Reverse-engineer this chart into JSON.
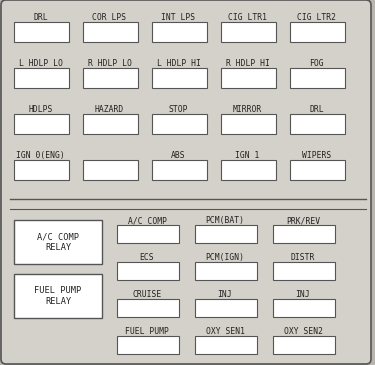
{
  "bg_outer": "#b8b5ae",
  "bg_inner": "#d4d1ca",
  "box_fill": "#f5f3ef",
  "border_color": "#555555",
  "text_color": "#222222",
  "white": "#ffffff",
  "top_rows": [
    [
      "DRL",
      "COR LPS",
      "INT LPS",
      "CIG LTR1",
      "CIG LTR2"
    ],
    [
      "L HDLP LO",
      "R HDLP LO",
      "L HDLP HI",
      "R HDLP HI",
      "FOG"
    ],
    [
      "HDLPS",
      "HAZARD",
      "STOP",
      "MIRROR",
      "DRL"
    ],
    [
      "IGN 0(ENG)",
      "",
      "ABS",
      "IGN 1",
      "WIPERS"
    ]
  ],
  "top_row4_skip": [
    1
  ],
  "relay_labels": [
    "A/C COMP\nRELAY",
    "FUEL PUMP\nRELAY"
  ],
  "bot_rows": [
    [
      "A/C COMP",
      "PCM(BAT)",
      "PRK/REV"
    ],
    [
      "ECS",
      "PCM(IGN)",
      "DISTR"
    ],
    [
      "CRUISE",
      "INJ",
      "INJ"
    ],
    [
      "FUEL PUMP",
      "OXY SEN1",
      "OXY SEN2"
    ]
  ]
}
